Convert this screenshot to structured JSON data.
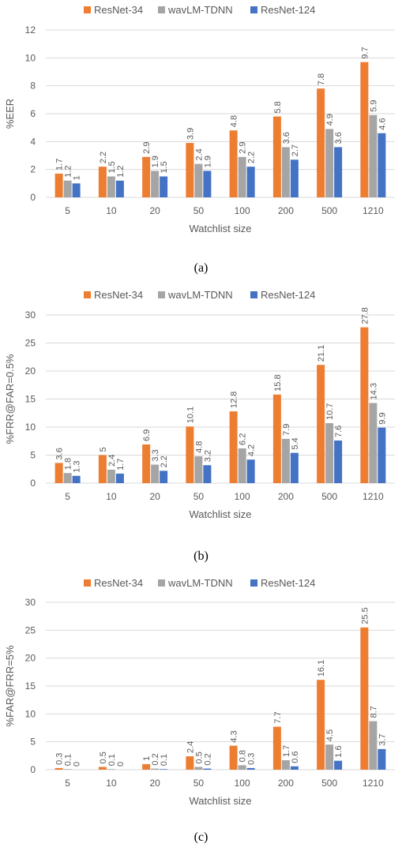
{
  "colors": {
    "resnet34": "#ed7d31",
    "wavlm": "#a5a5a5",
    "resnet124": "#4472c4",
    "grid": "#d9d9d9",
    "text": "#595959"
  },
  "chart_data": [
    {
      "type": "bar",
      "caption": "(a)",
      "legend": [
        "ResNet-34",
        "wavLM-TDNN",
        "ResNet-124"
      ],
      "legend_position": "top",
      "categories": [
        "5",
        "10",
        "20",
        "50",
        "100",
        "200",
        "500",
        "1210"
      ],
      "series": [
        {
          "name": "ResNet-34",
          "values": [
            1.7,
            2.2,
            2.9,
            3.9,
            4.8,
            5.8,
            7.8,
            9.7
          ]
        },
        {
          "name": "wavLM-TDNN",
          "values": [
            1.2,
            1.5,
            1.9,
            2.4,
            2.9,
            3.6,
            4.9,
            5.9
          ]
        },
        {
          "name": "ResNet-124",
          "values": [
            1,
            1.2,
            1.5,
            1.9,
            2.2,
            2.7,
            3.6,
            4.6
          ]
        }
      ],
      "xlabel": "Watchlist size",
      "ylabel": "%EER",
      "ylim": [
        0,
        12
      ],
      "yticks": [
        "0",
        "2",
        "4",
        "6",
        "8",
        "10",
        "12"
      ],
      "grid": true
    },
    {
      "type": "bar",
      "caption": "(b)",
      "legend": [
        "ResNet-34",
        "wavLM-TDNN",
        "ResNet-124"
      ],
      "legend_position": "top",
      "categories": [
        "5",
        "10",
        "20",
        "50",
        "100",
        "200",
        "500",
        "1210"
      ],
      "series": [
        {
          "name": "ResNet-34",
          "values": [
            3.6,
            5,
            6.9,
            10.1,
            12.8,
            15.8,
            21.1,
            27.8
          ]
        },
        {
          "name": "wavLM-TDNN",
          "values": [
            1.8,
            2.4,
            3.3,
            4.8,
            6.2,
            7.9,
            10.7,
            14.3
          ]
        },
        {
          "name": "ResNet-124",
          "values": [
            1.3,
            1.7,
            2.2,
            3.2,
            4.2,
            5.4,
            7.6,
            9.9
          ]
        }
      ],
      "xlabel": "Watchlist size",
      "ylabel": "%FRR@FAR=0.5%",
      "ylim": [
        0,
        30
      ],
      "yticks": [
        "0",
        "5",
        "10",
        "15",
        "20",
        "25",
        "30"
      ],
      "grid": true
    },
    {
      "type": "bar",
      "caption": "(c)",
      "legend": [
        "ResNet-34",
        "wavLM-TDNN",
        "ResNet-124"
      ],
      "legend_position": "top",
      "categories": [
        "5",
        "10",
        "20",
        "50",
        "100",
        "200",
        "500",
        "1210"
      ],
      "series": [
        {
          "name": "ResNet-34",
          "values": [
            0.3,
            0.5,
            1,
            2.4,
            4.3,
            7.7,
            16.1,
            25.5
          ]
        },
        {
          "name": "wavLM-TDNN",
          "values": [
            0.1,
            0.1,
            0.2,
            0.5,
            0.8,
            1.7,
            4.5,
            8.7
          ]
        },
        {
          "name": "ResNet-124",
          "values": [
            0,
            0,
            0.1,
            0.2,
            0.3,
            0.6,
            1.6,
            3.7
          ]
        }
      ],
      "xlabel": "Watchlist size",
      "ylabel": "%FAR@FRR=5%",
      "ylim": [
        0,
        30
      ],
      "yticks": [
        "0",
        "5",
        "10",
        "15",
        "20",
        "25",
        "30"
      ],
      "grid": true
    }
  ]
}
